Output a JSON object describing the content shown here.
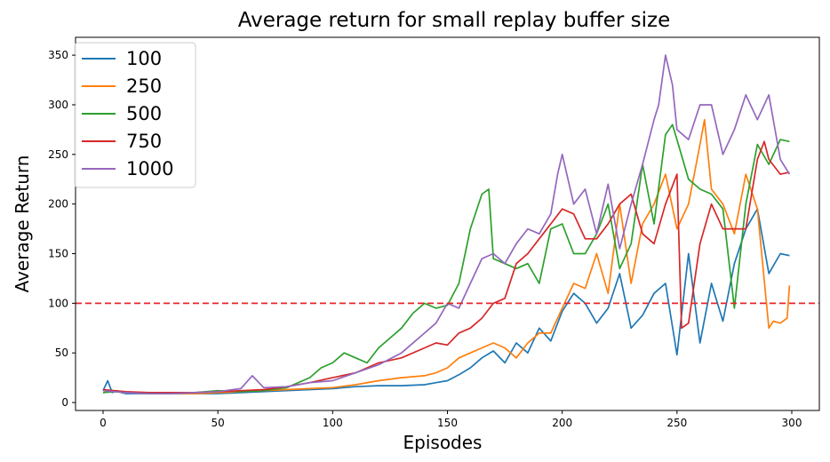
{
  "chart_data": {
    "type": "line",
    "title": "Average return for small replay buffer size",
    "xlabel": "Episodes",
    "ylabel": "Average Return",
    "xlim": [
      -12,
      312
    ],
    "ylim": [
      -8,
      368
    ],
    "xticks": [
      0,
      50,
      100,
      150,
      200,
      250,
      300
    ],
    "yticks": [
      0,
      50,
      100,
      150,
      200,
      250,
      300,
      350
    ],
    "grid": false,
    "legend_position": "top-left",
    "reference_line": {
      "y": 100,
      "color": "#e8262a",
      "style": "dashed"
    },
    "series": [
      {
        "name": "100",
        "color": "#1f77b4",
        "x": [
          0,
          2,
          4,
          6,
          8,
          10,
          20,
          30,
          40,
          50,
          60,
          70,
          80,
          90,
          100,
          110,
          120,
          130,
          140,
          145,
          150,
          155,
          160,
          165,
          170,
          175,
          180,
          185,
          190,
          195,
          200,
          205,
          210,
          215,
          220,
          225,
          230,
          235,
          240,
          245,
          250,
          255,
          260,
          265,
          270,
          275,
          280,
          285,
          290,
          295,
          299
        ],
        "y": [
          12,
          22,
          10,
          12,
          10,
          9,
          9,
          9,
          9,
          9,
          10,
          11,
          12,
          13,
          14,
          16,
          17,
          17,
          18,
          20,
          22,
          28,
          35,
          45,
          52,
          40,
          60,
          50,
          75,
          62,
          92,
          110,
          100,
          80,
          95,
          130,
          75,
          88,
          110,
          120,
          48,
          150,
          60,
          120,
          82,
          140,
          175,
          195,
          130,
          150,
          148
        ]
      },
      {
        "name": "250",
        "color": "#ff7f0e",
        "x": [
          0,
          5,
          10,
          20,
          30,
          40,
          50,
          60,
          70,
          80,
          90,
          100,
          110,
          120,
          130,
          140,
          145,
          150,
          155,
          160,
          165,
          170,
          175,
          180,
          185,
          190,
          195,
          200,
          205,
          210,
          215,
          220,
          225,
          230,
          235,
          240,
          245,
          250,
          255,
          260,
          262,
          265,
          270,
          275,
          280,
          285,
          290,
          292,
          295,
          298,
          299
        ],
        "y": [
          12,
          11,
          10,
          9,
          9,
          9,
          10,
          11,
          12,
          13,
          14,
          15,
          18,
          22,
          25,
          27,
          30,
          35,
          45,
          50,
          55,
          60,
          55,
          45,
          60,
          70,
          70,
          95,
          120,
          115,
          150,
          110,
          200,
          120,
          180,
          200,
          230,
          175,
          200,
          260,
          285,
          215,
          200,
          170,
          230,
          195,
          75,
          82,
          80,
          85,
          118
        ]
      },
      {
        "name": "500",
        "color": "#2ca02c",
        "x": [
          0,
          5,
          10,
          20,
          30,
          40,
          50,
          60,
          70,
          80,
          90,
          95,
          100,
          105,
          110,
          115,
          120,
          125,
          130,
          135,
          140,
          145,
          150,
          155,
          160,
          165,
          168,
          170,
          175,
          180,
          185,
          190,
          195,
          200,
          205,
          210,
          215,
          220,
          225,
          230,
          235,
          240,
          245,
          248,
          250,
          255,
          260,
          265,
          270,
          275,
          280,
          285,
          290,
          295,
          299
        ],
        "y": [
          10,
          11,
          10,
          9,
          9,
          10,
          12,
          11,
          12,
          15,
          25,
          35,
          40,
          50,
          45,
          40,
          55,
          65,
          75,
          90,
          100,
          95,
          98,
          120,
          175,
          210,
          215,
          145,
          140,
          135,
          140,
          120,
          175,
          180,
          150,
          150,
          170,
          200,
          135,
          160,
          240,
          180,
          270,
          280,
          265,
          225,
          215,
          210,
          195,
          95,
          200,
          260,
          240,
          265,
          263
        ]
      },
      {
        "name": "750",
        "color": "#d62728",
        "x": [
          0,
          5,
          10,
          20,
          30,
          40,
          50,
          60,
          70,
          80,
          90,
          100,
          110,
          120,
          130,
          140,
          145,
          150,
          155,
          160,
          165,
          170,
          175,
          180,
          185,
          190,
          195,
          200,
          205,
          210,
          215,
          220,
          225,
          230,
          235,
          240,
          245,
          250,
          252,
          255,
          260,
          265,
          270,
          275,
          280,
          285,
          288,
          290,
          295,
          299
        ],
        "y": [
          13,
          12,
          11,
          10,
          10,
          10,
          11,
          12,
          13,
          16,
          20,
          25,
          30,
          40,
          45,
          55,
          60,
          58,
          70,
          75,
          85,
          100,
          105,
          140,
          150,
          165,
          180,
          195,
          190,
          165,
          165,
          180,
          200,
          210,
          170,
          160,
          200,
          230,
          75,
          80,
          160,
          200,
          175,
          175,
          175,
          245,
          263,
          245,
          230,
          232
        ]
      },
      {
        "name": "1000",
        "color": "#9467bd",
        "x": [
          0,
          5,
          10,
          20,
          30,
          40,
          50,
          60,
          65,
          70,
          80,
          90,
          100,
          110,
          120,
          130,
          140,
          145,
          150,
          155,
          160,
          165,
          170,
          175,
          180,
          185,
          190,
          195,
          198,
          200,
          205,
          210,
          215,
          220,
          225,
          230,
          235,
          240,
          242,
          245,
          248,
          250,
          255,
          260,
          265,
          270,
          275,
          280,
          285,
          290,
          295,
          299
        ],
        "y": [
          12,
          11,
          10,
          9,
          9,
          10,
          11,
          14,
          27,
          15,
          16,
          20,
          22,
          30,
          38,
          50,
          70,
          80,
          100,
          95,
          120,
          145,
          150,
          140,
          160,
          175,
          170,
          190,
          230,
          250,
          200,
          215,
          170,
          220,
          155,
          200,
          240,
          285,
          300,
          350,
          320,
          275,
          265,
          300,
          300,
          250,
          275,
          310,
          285,
          310,
          245,
          230
        ]
      }
    ]
  }
}
